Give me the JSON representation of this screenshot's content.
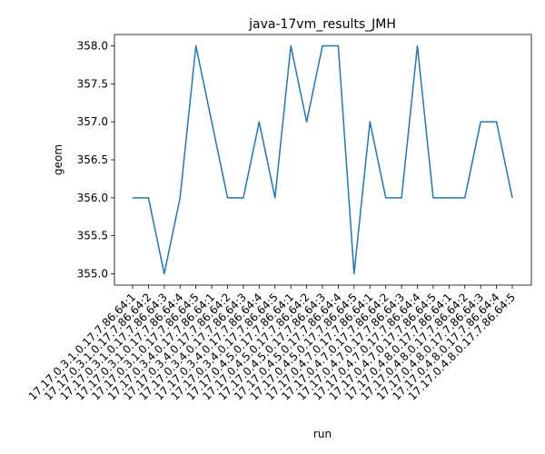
{
  "chart_data": {
    "type": "line",
    "title": "java-17vm_results_JMH",
    "xlabel": "run",
    "ylabel": "geom",
    "grid": false,
    "legend": "none",
    "ylim": [
      354.85,
      358.15
    ],
    "yticks": [
      "355.0",
      "355.5",
      "356.0",
      "356.5",
      "357.0",
      "357.5",
      "358.0"
    ],
    "yticks_values": [
      355.0,
      355.5,
      356.0,
      356.5,
      357.0,
      357.5,
      358.0
    ],
    "categories": [
      "17.17.0.3.1.0.17.7.86.64:1",
      "17.17.0.3.1.0.17.7.86.64:2",
      "17.17.0.3.1.0.17.7.86.64:3",
      "17.17.0.3.1.0.17.7.86.64:4",
      "17.17.0.3.1.0.17.7.86.64:5",
      "17.17.0.3.4.0.17.7.86.64:1",
      "17.17.0.3.4.0.17.7.86.64:2",
      "17.17.0.3.4.0.17.7.86.64:3",
      "17.17.0.3.4.0.17.7.86.64:4",
      "17.17.0.3.4.0.17.7.86.64:5",
      "17.17.0.4.5.0.17.7.86.64:1",
      "17.17.0.4.5.0.17.7.86.64:2",
      "17.17.0.4.5.0.17.7.86.64:3",
      "17.17.0.4.5.0.17.7.86.64:4",
      "17.17.0.4.5.0.17.7.86.64:5",
      "17.17.0.4.7.0.17.7.86.64:1",
      "17.17.0.4.7.0.17.7.86.64:2",
      "17.17.0.4.7.0.17.7.86.64:3",
      "17.17.0.4.7.0.17.7.86.64:4",
      "17.17.0.4.7.0.17.7.86.64:5",
      "17.17.0.4.8.0.17.7.86.64:1",
      "17.17.0.4.8.0.17.7.86.64:2",
      "17.17.0.4.8.0.17.7.86.64:3",
      "17.17.0.4.8.0.17.7.86.64:4",
      "17.17.0.4.8.0.17.7.86.64:5"
    ],
    "series": [
      {
        "color": "#1f77b4",
        "values": [
          356,
          356,
          355,
          356,
          358,
          357,
          356,
          356,
          357,
          356,
          358,
          357,
          358,
          358,
          355,
          357,
          356,
          356,
          358,
          356,
          356,
          356,
          357,
          357,
          356
        ]
      }
    ]
  }
}
